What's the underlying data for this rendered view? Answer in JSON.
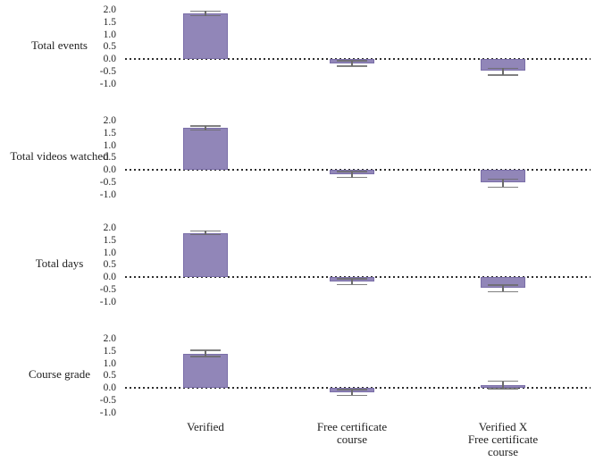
{
  "chart_data": {
    "type": "bar",
    "title": "",
    "orientation": "vertical",
    "layout": "4 stacked panels sharing x categories",
    "categories": [
      "Verified",
      "Free certificate\ncourse",
      "Verified X\nFree certificate\ncourse"
    ],
    "yticks": [
      2.0,
      1.5,
      1.0,
      0.5,
      0.0,
      -0.5,
      -1.0
    ],
    "ylim": [
      -1.0,
      2.0
    ],
    "grid": false,
    "zero_reference_line": "dotted",
    "panels": [
      {
        "label": "Total events",
        "values": [
          1.85,
          -0.18,
          -0.48
        ],
        "error_intervals": [
          [
            1.76,
            1.95
          ],
          [
            -0.29,
            -0.08
          ],
          [
            -0.65,
            -0.38
          ]
        ]
      },
      {
        "label": "Total videos watched",
        "values": [
          1.7,
          -0.18,
          -0.52
        ],
        "error_intervals": [
          [
            1.61,
            1.79
          ],
          [
            -0.31,
            -0.08
          ],
          [
            -0.7,
            -0.38
          ]
        ]
      },
      {
        "label": "Total days",
        "values": [
          1.8,
          -0.18,
          -0.45
        ],
        "error_intervals": [
          [
            1.72,
            1.88
          ],
          [
            -0.3,
            -0.08
          ],
          [
            -0.6,
            -0.33
          ]
        ]
      },
      {
        "label": "Course grade",
        "values": [
          1.4,
          -0.18,
          0.1
        ],
        "error_intervals": [
          [
            1.28,
            1.52
          ],
          [
            -0.3,
            -0.07
          ],
          [
            -0.04,
            0.27
          ]
        ]
      }
    ],
    "colors": {
      "bar_fill": "#9186b8",
      "bar_edge": "#7a6ea8",
      "error_bar": "#6b6b6b",
      "zero_line": "#2e2e2e",
      "text": "#1f1f1f",
      "background": "#ffffff"
    }
  }
}
